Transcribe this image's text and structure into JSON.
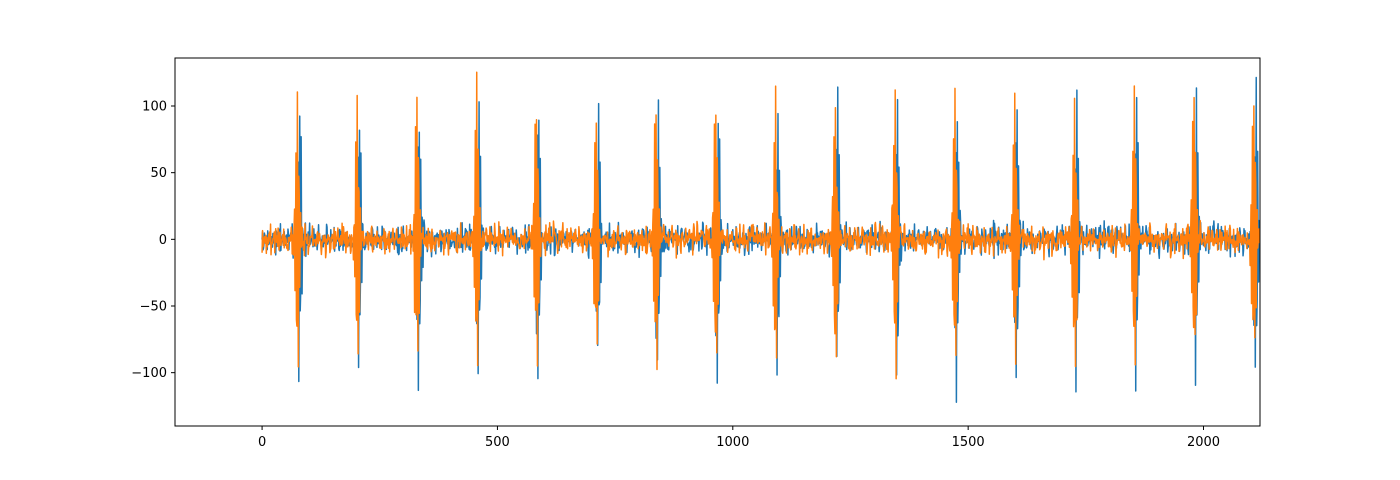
{
  "chart_data": {
    "type": "line",
    "title": "",
    "xlabel": "",
    "ylabel": "",
    "xlim": [
      -185,
      2120
    ],
    "ylim": [
      -140,
      136
    ],
    "x_ticks": [
      0,
      500,
      1000,
      1500,
      2000
    ],
    "x_tick_labels": [
      "0",
      "500",
      "1000",
      "1500",
      "2000"
    ],
    "y_ticks": [
      -100,
      -50,
      0,
      50,
      100
    ],
    "y_tick_labels": [
      "−100",
      "−50",
      "0",
      "50",
      "100"
    ],
    "grid": false,
    "legend": "none",
    "n_points": 2120,
    "burst_period": 127,
    "burst_centers": [
      75,
      202,
      329,
      456,
      583,
      710,
      837,
      964,
      1091,
      1218,
      1345,
      1472,
      1599,
      1726,
      1853,
      1980,
      2107
    ],
    "burst_amplitude": 125,
    "noise_amplitude": 12,
    "series": [
      {
        "color": "#1f77b4",
        "burst_offset": 4,
        "phase": 0.0,
        "seed": 7
      },
      {
        "color": "#ff7f0e",
        "burst_offset": 0,
        "phase": 1.3,
        "seed": 19
      }
    ]
  }
}
